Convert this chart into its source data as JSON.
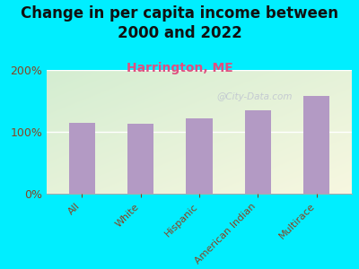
{
  "title": "Change in per capita income between\n2000 and 2022",
  "subtitle": "Harrington, ME",
  "categories": [
    "All",
    "White",
    "Hispanic",
    "American Indian",
    "Multirace"
  ],
  "values": [
    115,
    113,
    122,
    135,
    158
  ],
  "bar_color": "#b39ac4",
  "background_outer": "#00eeff",
  "title_fontsize": 12,
  "title_color": "#111111",
  "subtitle_fontsize": 10,
  "subtitle_color": "#e05080",
  "tick_label_color": "#884422",
  "ytick_label_color": "#884422",
  "watermark": "@City-Data.com",
  "ylim": [
    0,
    200
  ],
  "yticks": [
    0,
    100,
    200
  ],
  "ytick_labels": [
    "0%",
    "100%",
    "200%"
  ]
}
